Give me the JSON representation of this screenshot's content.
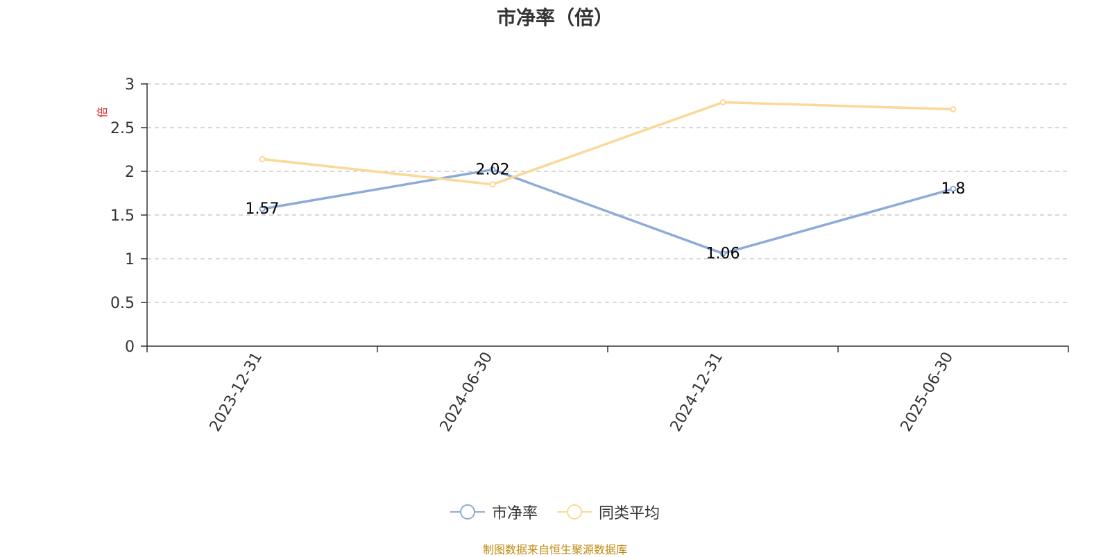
{
  "chart_data": {
    "type": "line",
    "title": "市净率（倍）",
    "unit_label": "倍",
    "categories": [
      "2023-12-31",
      "2024-06-30",
      "2024-12-31",
      "2025-06-30"
    ],
    "series": [
      {
        "name": "市净率",
        "values": [
          1.57,
          2.02,
          1.06,
          1.8
        ],
        "color": "#8eabd8",
        "data_labels": [
          "1.57",
          "2.02",
          "1.06",
          "1.8"
        ]
      },
      {
        "name": "同类平均",
        "values": [
          2.14,
          1.85,
          2.79,
          2.71
        ],
        "color": "#fbd897"
      }
    ],
    "ylim": [
      0,
      3
    ],
    "yticks": [
      "0",
      "0.5",
      "1",
      "1.5",
      "2",
      "2.5",
      "3"
    ],
    "ytick_values": [
      0,
      0.5,
      1,
      1.5,
      2,
      2.5,
      3
    ],
    "grid": true,
    "legend_position": "bottom-center"
  },
  "colors": {
    "title": "#333333",
    "unit_label": "#e03030",
    "axis": "#333333",
    "grid": "#cccccc",
    "source_note": "#c08a10"
  },
  "source_note": "制图数据来自恒生聚源数据库"
}
